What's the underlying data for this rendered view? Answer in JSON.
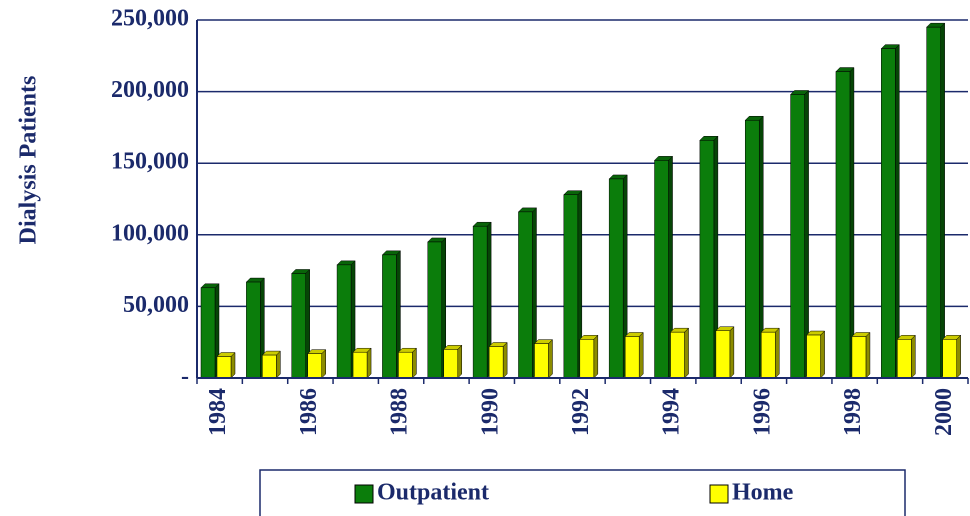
{
  "chart_data": {
    "type": "bar",
    "y_label": "Dialysis Patients",
    "categories": [
      "1984",
      null,
      "1986",
      null,
      "1988",
      null,
      "1990",
      null,
      "1992",
      null,
      "1994",
      null,
      "1996",
      null,
      "1998",
      null,
      "2000"
    ],
    "series": [
      {
        "name": "Outpatient",
        "color": "#0b7d0b",
        "values": [
          63000,
          67000,
          73000,
          79000,
          86000,
          95000,
          106000,
          116000,
          128000,
          139000,
          152000,
          166000,
          180000,
          198000,
          214000,
          230000,
          245000
        ]
      },
      {
        "name": "Home",
        "color": "#ffff00",
        "values": [
          15000,
          16000,
          17000,
          18000,
          18000,
          20000,
          22000,
          24000,
          27000,
          29000,
          32000,
          33000,
          32000,
          30000,
          29000,
          27000,
          27000
        ]
      }
    ],
    "ylim": [
      0,
      250000
    ],
    "yticks": [
      {
        "value": 0,
        "label": "-"
      },
      {
        "value": 50000,
        "label": "50,000"
      },
      {
        "value": 100000,
        "label": "100,000"
      },
      {
        "value": 150000,
        "label": "150,000"
      },
      {
        "value": 200000,
        "label": "200,000"
      },
      {
        "value": 250000,
        "label": "250,000"
      }
    ],
    "grid": true,
    "legend": "bottom"
  }
}
